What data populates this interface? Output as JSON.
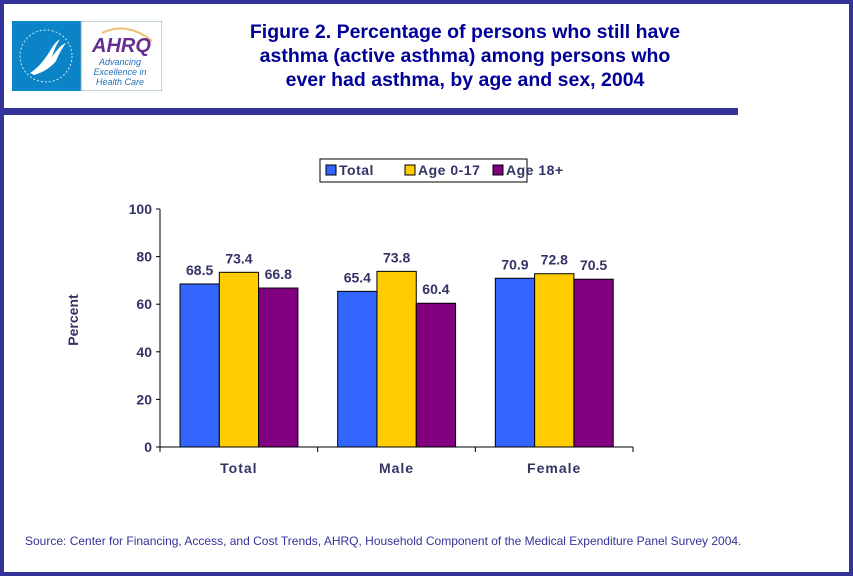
{
  "header": {
    "title": "Figure 2. Percentage of persons who still have asthma (active asthma) among persons who ever had asthma, by age and sex, 2004",
    "title_lines": [
      "Figure 2. Percentage of persons who still have",
      "asthma (active asthma) among persons who",
      "ever had asthma, by age and sex, 2004"
    ],
    "logo": {
      "brand": "AHRQ",
      "tagline": [
        "Advancing",
        "Excellence in",
        "Health Care"
      ]
    }
  },
  "source": "Source: Center for Financing, Access, and Cost Trends, AHRQ, Household Component of the Medical Expenditure Panel Survey 2004.",
  "chart_data": {
    "type": "bar",
    "title": "",
    "xlabel": "",
    "ylabel": "Percent",
    "ylim": [
      0,
      100
    ],
    "yticks": [
      0,
      20,
      40,
      60,
      80,
      100
    ],
    "categories": [
      "Total",
      "Male",
      "Female"
    ],
    "series": [
      {
        "name": "Total",
        "color": "#3366FF",
        "values": [
          68.5,
          65.4,
          70.9
        ]
      },
      {
        "name": "Age 0-17",
        "color": "#FFCC00",
        "values": [
          73.4,
          73.8,
          72.8
        ]
      },
      {
        "name": "Age 18+",
        "color": "#800080",
        "values": [
          66.8,
          60.4,
          70.5
        ]
      }
    ],
    "legend": "top",
    "grid": false,
    "data_labels": true
  }
}
